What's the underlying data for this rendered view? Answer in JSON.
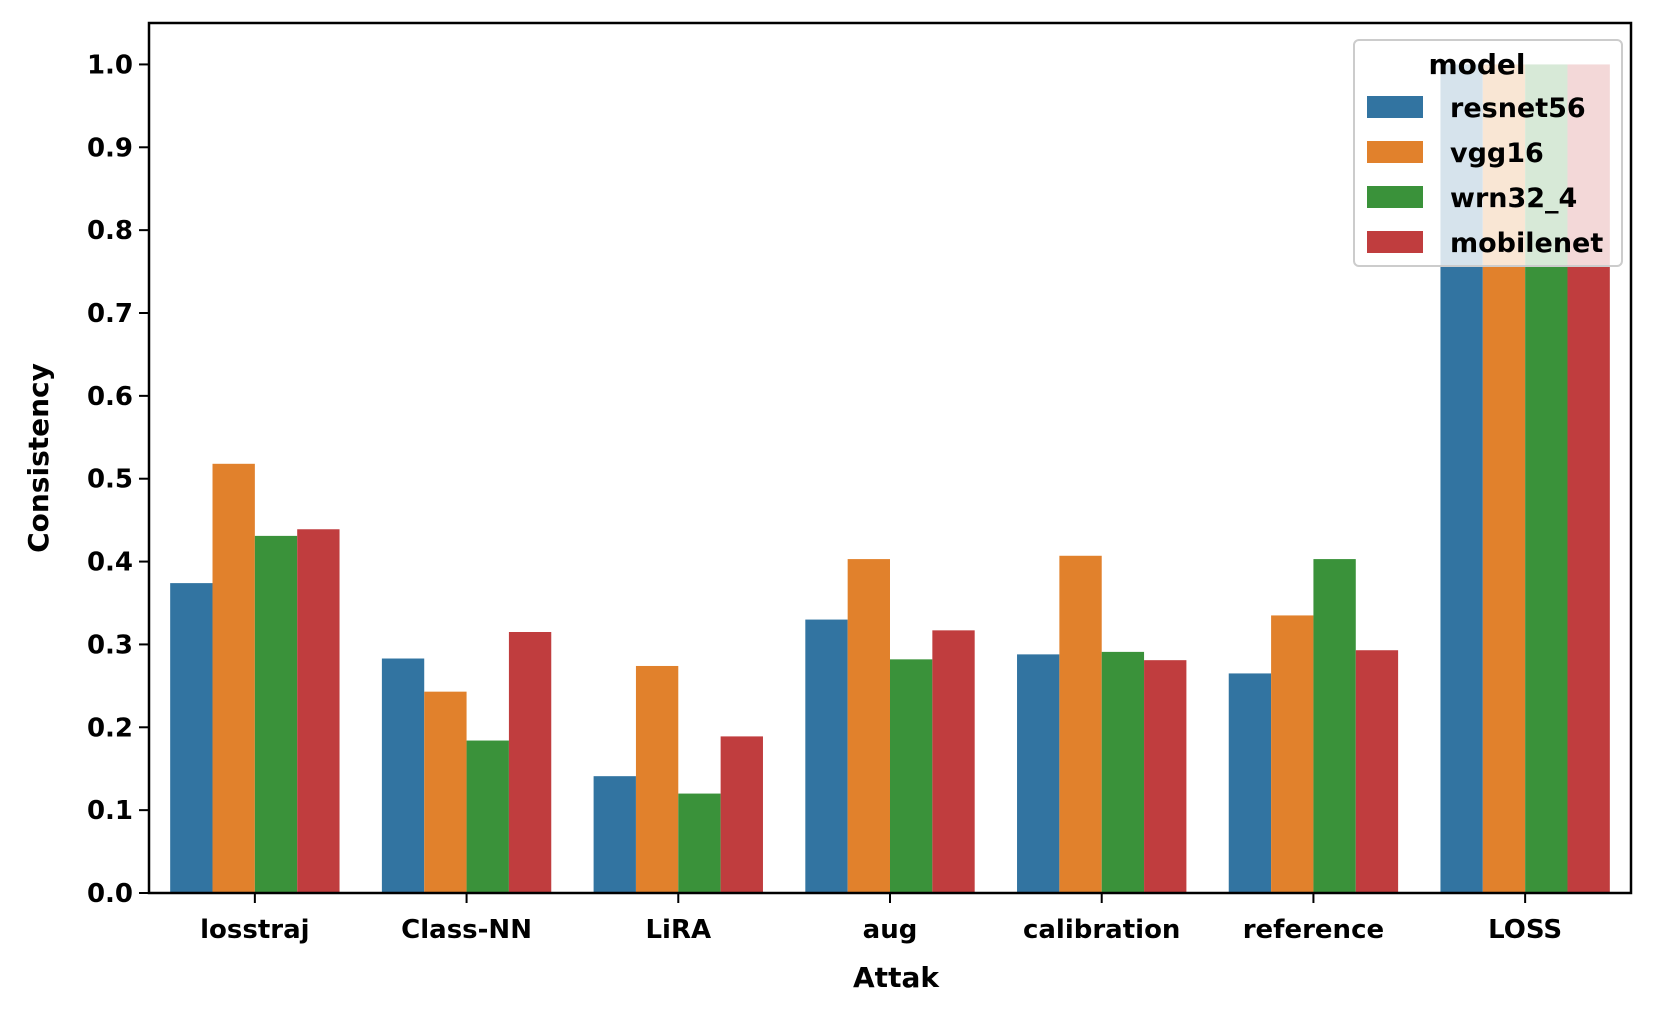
{
  "chart_data": {
    "type": "bar",
    "xlabel": "Attak",
    "ylabel": "Consistency",
    "categories": [
      "losstraj",
      "Class-NN",
      "LiRA",
      "aug",
      "calibration",
      "reference",
      "LOSS"
    ],
    "series": [
      {
        "name": "resnet56",
        "color": "#3274a1",
        "values": [
          0.374,
          0.283,
          0.141,
          0.33,
          0.288,
          0.265,
          1.0
        ]
      },
      {
        "name": "vgg16",
        "color": "#e1812c",
        "values": [
          0.518,
          0.243,
          0.274,
          0.403,
          0.407,
          0.335,
          1.0
        ]
      },
      {
        "name": "wrn32_4",
        "color": "#3a923a",
        "values": [
          0.431,
          0.184,
          0.12,
          0.282,
          0.291,
          0.403,
          1.0
        ]
      },
      {
        "name": "mobilenet",
        "color": "#c03d3e",
        "values": [
          0.439,
          0.315,
          0.189,
          0.317,
          0.281,
          0.293,
          1.0
        ]
      }
    ],
    "ylim": [
      0.0,
      1.05
    ],
    "yticks": [
      "0.0",
      "0.1",
      "0.2",
      "0.3",
      "0.4",
      "0.5",
      "0.6",
      "0.7",
      "0.8",
      "0.9",
      "1.0"
    ],
    "grid": false,
    "legend": {
      "title": "model",
      "placement": "top-right"
    }
  }
}
